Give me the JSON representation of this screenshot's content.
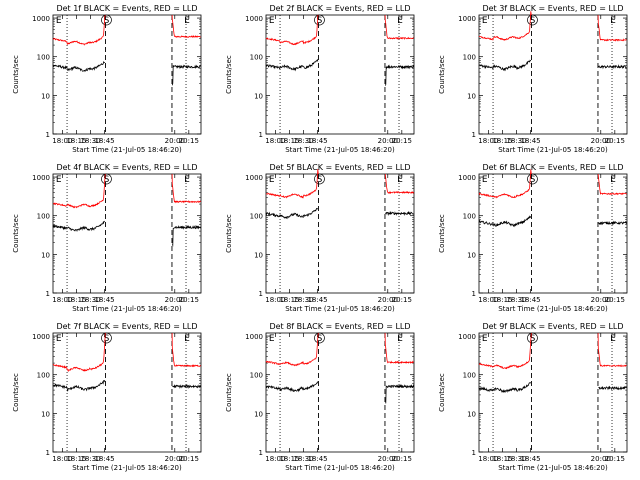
{
  "figure": {
    "background": "#ffffff",
    "panel_titles": [
      "Det 1f BLACK = Events, RED = LLD",
      "Det 2f BLACK = Events, RED = LLD",
      "Det 3f BLACK = Events, RED = LLD",
      "Det 4f BLACK = Events, RED = LLD",
      "Det 5f BLACK = Events, RED = LLD",
      "Det 6f BLACK = Events, RED = LLD",
      "Det 7f BLACK = Events, RED = LLD",
      "Det 8f BLACK = Events, RED = LLD",
      "Det 9f BLACK = Events, RED = LLD"
    ]
  },
  "chart_data": {
    "type": "line",
    "layout": "3x3 grid of panels",
    "ylabel": "Counts/sec",
    "xlabel": "Start Time (21-Jul-05 18:46:20)",
    "y_scale": "log",
    "ylim": [
      1,
      1200
    ],
    "y_ticks": [
      1,
      10,
      100,
      1000
    ],
    "y_tick_labels": [
      "1",
      "10",
      "100",
      "1000"
    ],
    "xlim": [
      "17:50",
      "20:28"
    ],
    "x_ticks": [
      "18:00",
      "18:15",
      "18:30",
      "18:45",
      "20:00",
      "20:15"
    ],
    "x_tick_labels": [
      "18:00",
      "18:15",
      "18:30",
      "18:45",
      "20:00",
      "20:15"
    ],
    "markers": [
      {
        "label": "E",
        "time": "17:51",
        "line": "none"
      },
      {
        "label": "",
        "time": "18:05",
        "line": "dotted"
      },
      {
        "label": "S",
        "time": "18:46",
        "line": "dashed"
      },
      {
        "label": "",
        "time": "19:57",
        "line": "dashed"
      },
      {
        "label": "E",
        "time": "20:12",
        "line": "dotted"
      }
    ],
    "series_colors": {
      "events": "#000000",
      "lld": "#ff0000"
    },
    "detectors": [
      {
        "det": "1f",
        "lld": {
          "base": 290,
          "pre_min": 230,
          "post": 330
        },
        "events": {
          "base": 60,
          "pre_min": 48,
          "post": 55
        },
        "events_post_drop": true
      },
      {
        "det": "2f",
        "lld": {
          "base": 300,
          "pre_min": 230,
          "post": 300
        },
        "events": {
          "base": 60,
          "pre_min": 52,
          "post": 55
        },
        "events_post_drop": true
      },
      {
        "det": "3f",
        "lld": {
          "base": 330,
          "pre_min": 300,
          "post": 270
        },
        "events": {
          "base": 60,
          "pre_min": 52,
          "post": 55
        },
        "events_post_drop": false
      },
      {
        "det": "4f",
        "lld": {
          "base": 210,
          "pre_min": 180,
          "post": 230
        },
        "events": {
          "base": 55,
          "pre_min": 45,
          "post": 50
        },
        "events_post_drop": true
      },
      {
        "det": "5f",
        "lld": {
          "base": 380,
          "pre_min": 330,
          "post": 400
        },
        "events": {
          "base": 115,
          "pre_min": 100,
          "post": 115
        },
        "events_post_drop": false
      },
      {
        "det": "6f",
        "lld": {
          "base": 370,
          "pre_min": 330,
          "post": 370
        },
        "events": {
          "base": 70,
          "pre_min": 62,
          "post": 65
        },
        "events_post_drop": false
      },
      {
        "det": "7f",
        "lld": {
          "base": 180,
          "pre_min": 140,
          "post": 170
        },
        "events": {
          "base": 55,
          "pre_min": 45,
          "post": 50
        },
        "events_post_drop": false
      },
      {
        "det": "8f",
        "lld": {
          "base": 220,
          "pre_min": 190,
          "post": 210
        },
        "events": {
          "base": 50,
          "pre_min": 42,
          "post": 50
        },
        "events_post_drop": true
      },
      {
        "det": "9f",
        "lld": {
          "base": 190,
          "pre_min": 160,
          "post": 170
        },
        "events": {
          "base": 45,
          "pre_min": 40,
          "post": 45
        },
        "events_post_drop": false
      }
    ]
  }
}
